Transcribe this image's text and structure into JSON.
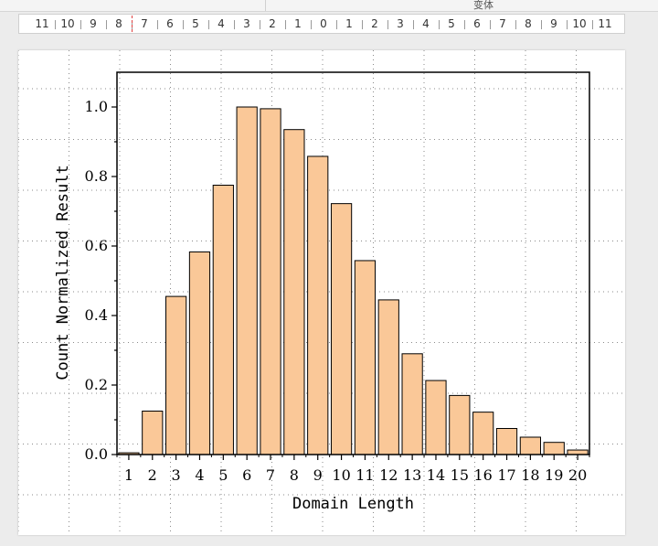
{
  "topbar": {
    "label": "变体"
  },
  "ruler": {
    "marks": [
      "11",
      "10",
      "9",
      "8",
      "7",
      "6",
      "5",
      "4",
      "3",
      "2",
      "1",
      "0",
      "1",
      "2",
      "3",
      "4",
      "5",
      "6",
      "7",
      "8",
      "9",
      "10",
      "11"
    ]
  },
  "chart_data": {
    "type": "bar",
    "xlabel": "Domain Length",
    "ylabel": "Count Normalized Result",
    "categories": [
      "1",
      "2",
      "3",
      "4",
      "5",
      "6",
      "7",
      "8",
      "9",
      "10",
      "11",
      "12",
      "13",
      "14",
      "15",
      "16",
      "17",
      "18",
      "19",
      "20"
    ],
    "values": [
      0.005,
      0.125,
      0.455,
      0.583,
      0.775,
      1.0,
      0.995,
      0.935,
      0.858,
      0.722,
      0.558,
      0.445,
      0.29,
      0.213,
      0.17,
      0.122,
      0.075,
      0.05,
      0.035,
      0.013
    ],
    "ylim": [
      0,
      1.1
    ],
    "yticks": [
      "0.0",
      "0.2",
      "0.4",
      "0.6",
      "0.8",
      "1.0"
    ],
    "bar_fill": "#fac898",
    "bar_stroke": "#000000",
    "grid": true
  }
}
